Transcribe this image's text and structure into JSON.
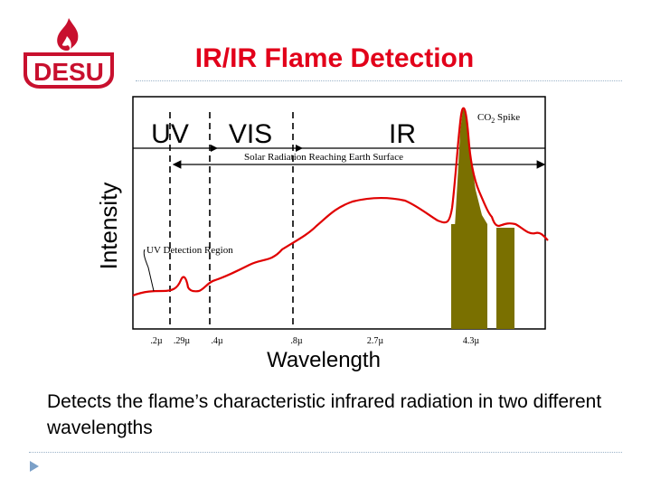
{
  "logo": {
    "text": "DESU"
  },
  "title": "IR/IR Flame Detection",
  "colors": {
    "title": "#e2001a",
    "curve": "#e00000",
    "bands": "#7a7000",
    "logo_red": "#c8102e",
    "rule": "#9cb3c9"
  },
  "diagram": {
    "regions": {
      "uv": "UV",
      "vis": "VIS",
      "ir": "IR"
    },
    "solar_label": "Solar Radiation Reaching Earth Surface",
    "co2_label": {
      "base": "CO",
      "sub": "2",
      "rest": " Spike"
    },
    "uv_detection_label": "UV Detection Region",
    "y_axis_label": "Intensity",
    "x_axis_label": "Wavelength",
    "ticks": [
      ".2µ",
      ".29µ",
      ".4µ",
      ".8µ",
      "2.7µ",
      "4.3µ"
    ]
  },
  "body_text": "Detects the flame’s characteristic infrared radiation in two different wavelengths",
  "bullet_icon": "triangle-right-icon"
}
